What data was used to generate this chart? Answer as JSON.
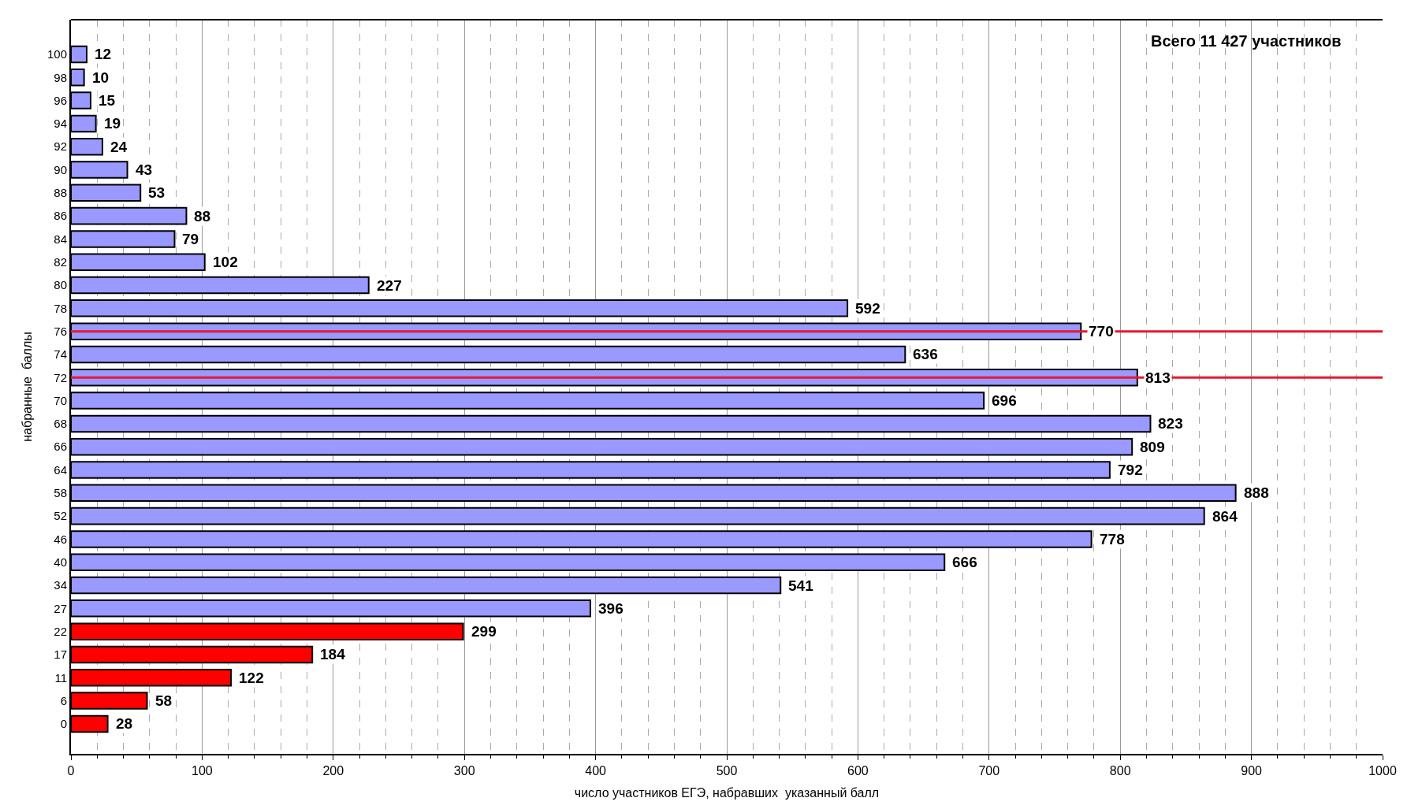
{
  "chart_data": {
    "type": "bar",
    "orientation": "horizontal",
    "xlabel": "число участников ЕГЭ, набравших  указанный балл",
    "ylabel": "набранные  баллы",
    "categories": [
      "100",
      "98",
      "96",
      "94",
      "92",
      "90",
      "88",
      "86",
      "84",
      "82",
      "80",
      "78",
      "76",
      "74",
      "72",
      "70",
      "68",
      "66",
      "64",
      "58",
      "52",
      "46",
      "40",
      "34",
      "27",
      "22",
      "17",
      "11",
      "6",
      "0"
    ],
    "values": [
      12,
      10,
      15,
      19,
      24,
      43,
      53,
      88,
      79,
      102,
      227,
      592,
      770,
      636,
      813,
      696,
      823,
      809,
      792,
      888,
      864,
      778,
      666,
      541,
      396,
      299,
      184,
      122,
      58,
      28
    ],
    "colors": [
      "#9999ff",
      "#9999ff",
      "#9999ff",
      "#9999ff",
      "#9999ff",
      "#9999ff",
      "#9999ff",
      "#9999ff",
      "#9999ff",
      "#9999ff",
      "#9999ff",
      "#9999ff",
      "#9999ff",
      "#9999ff",
      "#9999ff",
      "#9999ff",
      "#9999ff",
      "#9999ff",
      "#9999ff",
      "#9999ff",
      "#9999ff",
      "#9999ff",
      "#9999ff",
      "#9999ff",
      "#9999ff",
      "#ff0000",
      "#ff0000",
      "#ff0000",
      "#ff0000",
      "#ff0000"
    ],
    "data_labels": true,
    "xlim": [
      0,
      1000
    ],
    "xticks": [
      0,
      {
        "value": 20,
        "label": null
      },
      {
        "value": 40,
        "label": null
      },
      {
        "value": 60,
        "label": null
      },
      {
        "value": 80,
        "label": null
      },
      100,
      {
        "value": 120,
        "label": null
      },
      {
        "value": 140,
        "label": null
      },
      {
        "value": 160,
        "label": null
      },
      {
        "value": 180,
        "label": null
      },
      200,
      {
        "value": 220,
        "label": null
      },
      {
        "value": 240,
        "label": null
      },
      {
        "value": 260,
        "label": null
      },
      {
        "value": 280,
        "label": null
      },
      300,
      {
        "value": 320,
        "label": null
      },
      {
        "value": 340,
        "label": null
      },
      {
        "value": 360,
        "label": null
      },
      {
        "value": 380,
        "label": null
      },
      400,
      {
        "value": 420,
        "label": null
      },
      {
        "value": 440,
        "label": null
      },
      {
        "value": 460,
        "label": null
      },
      {
        "value": 480,
        "label": null
      },
      500,
      {
        "value": 520,
        "label": null
      },
      {
        "value": 540,
        "label": null
      },
      {
        "value": 560,
        "label": null
      },
      {
        "value": 580,
        "label": null
      },
      600,
      {
        "value": 620,
        "label": null
      },
      {
        "value": 640,
        "label": null
      },
      {
        "value": 660,
        "label": null
      },
      {
        "value": 680,
        "label": null
      },
      700,
      {
        "value": 720,
        "label": null
      },
      {
        "value": 740,
        "label": null
      },
      {
        "value": 760,
        "label": null
      },
      {
        "value": 780,
        "label": null
      },
      800,
      {
        "value": 820,
        "label": null
      },
      {
        "value": 840,
        "label": null
      },
      {
        "value": 860,
        "label": null
      },
      {
        "value": 880,
        "label": null
      },
      900,
      {
        "value": 920,
        "label": null
      },
      {
        "value": 940,
        "label": null
      },
      {
        "value": 960,
        "label": null
      },
      {
        "value": 980,
        "label": null
      },
      1000
    ],
    "grid": "x",
    "legend": false,
    "ref_lines": [
      {
        "axis": "y",
        "value": "76",
        "color": "#e8192c"
      },
      {
        "axis": "y",
        "value": "72",
        "color": "#e8192c"
      }
    ],
    "annotations": [
      "Всего 11 427 участников"
    ]
  }
}
